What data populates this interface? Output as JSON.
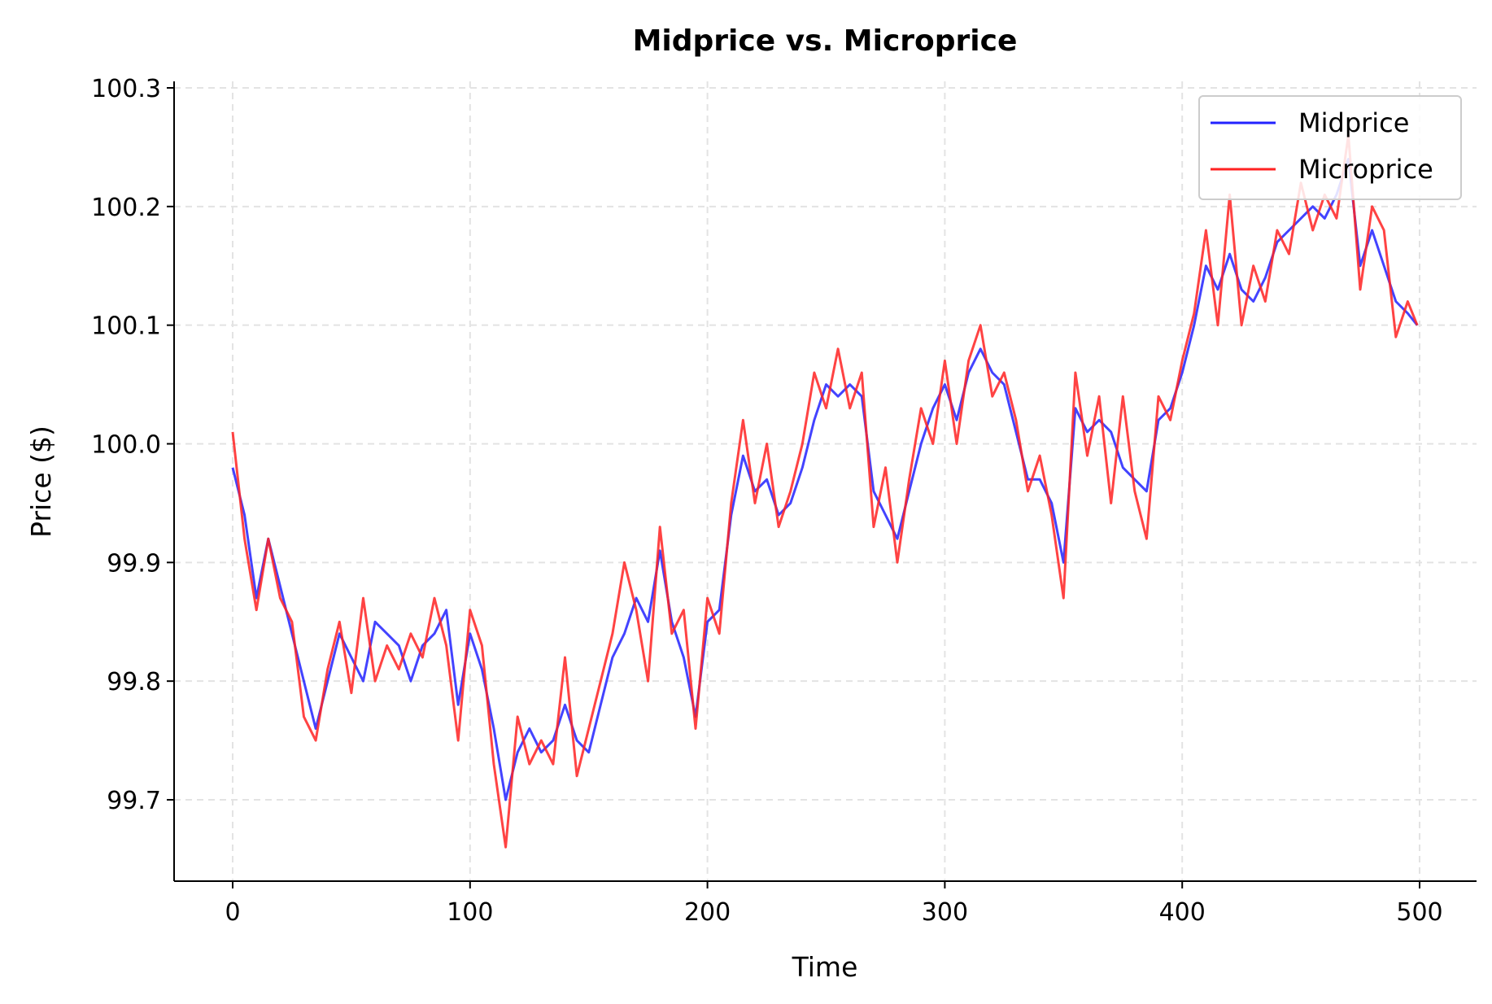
{
  "chart_data": {
    "type": "line",
    "title": "Midprice vs. Microprice",
    "xlabel": "Time",
    "ylabel": "Price ($)",
    "xlim": [
      -25,
      525
    ],
    "ylim": [
      99.63,
      100.31
    ],
    "xticks": [
      0,
      100,
      200,
      300,
      400,
      500
    ],
    "yticks": [
      99.7,
      99.8,
      99.9,
      100.0,
      100.1,
      100.2,
      100.3
    ],
    "xtick_labels": [
      "0",
      "100",
      "200",
      "300",
      "400",
      "500"
    ],
    "ytick_labels": [
      "99.7",
      "99.8",
      "99.9",
      "100.0",
      "100.1",
      "100.2",
      "100.3"
    ],
    "grid": true,
    "legend_position": "upper-right",
    "x": [
      0,
      5,
      10,
      15,
      20,
      25,
      30,
      35,
      40,
      45,
      50,
      55,
      60,
      65,
      70,
      75,
      80,
      85,
      90,
      95,
      100,
      105,
      110,
      115,
      120,
      125,
      130,
      135,
      140,
      145,
      150,
      155,
      160,
      165,
      170,
      175,
      180,
      185,
      190,
      195,
      200,
      205,
      210,
      215,
      220,
      225,
      230,
      235,
      240,
      245,
      250,
      255,
      260,
      265,
      270,
      275,
      280,
      285,
      290,
      295,
      300,
      305,
      310,
      315,
      320,
      325,
      330,
      335,
      340,
      345,
      350,
      355,
      360,
      365,
      370,
      375,
      380,
      385,
      390,
      395,
      400,
      405,
      410,
      415,
      420,
      425,
      430,
      435,
      440,
      445,
      450,
      455,
      460,
      465,
      470,
      475,
      480,
      485,
      490,
      495,
      499
    ],
    "series": [
      {
        "name": "Midprice",
        "color": "#2222ff",
        "values": [
          99.98,
          99.94,
          99.87,
          99.92,
          99.88,
          99.84,
          99.8,
          99.76,
          99.8,
          99.84,
          99.82,
          99.8,
          99.85,
          99.84,
          99.83,
          99.8,
          99.83,
          99.84,
          99.86,
          99.78,
          99.84,
          99.81,
          99.76,
          99.7,
          99.74,
          99.76,
          99.74,
          99.75,
          99.78,
          99.75,
          99.74,
          99.78,
          99.82,
          99.84,
          99.87,
          99.85,
          99.91,
          99.85,
          99.82,
          99.77,
          99.85,
          99.86,
          99.94,
          99.99,
          99.96,
          99.97,
          99.94,
          99.95,
          99.98,
          100.02,
          100.05,
          100.04,
          100.05,
          100.04,
          99.96,
          99.94,
          99.92,
          99.96,
          100.0,
          100.03,
          100.05,
          100.02,
          100.06,
          100.08,
          100.06,
          100.05,
          100.01,
          99.97,
          99.97,
          99.95,
          99.9,
          100.03,
          100.01,
          100.02,
          100.01,
          99.98,
          99.97,
          99.96,
          100.02,
          100.03,
          100.06,
          100.1,
          100.15,
          100.13,
          100.16,
          100.13,
          100.12,
          100.14,
          100.17,
          100.18,
          100.19,
          100.2,
          100.19,
          100.21,
          100.24,
          100.15,
          100.18,
          100.15,
          100.12,
          100.11,
          100.1
        ]
      },
      {
        "name": "Microprice",
        "color": "#ff2222",
        "values": [
          100.01,
          99.92,
          99.86,
          99.92,
          99.87,
          99.85,
          99.77,
          99.75,
          99.81,
          99.85,
          99.79,
          99.87,
          99.8,
          99.83,
          99.81,
          99.84,
          99.82,
          99.87,
          99.83,
          99.75,
          99.86,
          99.83,
          99.73,
          99.66,
          99.77,
          99.73,
          99.75,
          99.73,
          99.82,
          99.72,
          99.76,
          99.8,
          99.84,
          99.9,
          99.86,
          99.8,
          99.93,
          99.84,
          99.86,
          99.76,
          99.87,
          99.84,
          99.95,
          100.02,
          99.95,
          100.0,
          99.93,
          99.96,
          100.0,
          100.06,
          100.03,
          100.08,
          100.03,
          100.06,
          99.93,
          99.98,
          99.9,
          99.97,
          100.03,
          100.0,
          100.07,
          100.0,
          100.07,
          100.1,
          100.04,
          100.06,
          100.02,
          99.96,
          99.99,
          99.94,
          99.87,
          100.06,
          99.99,
          100.04,
          99.95,
          100.04,
          99.96,
          99.92,
          100.04,
          100.02,
          100.07,
          100.11,
          100.18,
          100.1,
          100.21,
          100.1,
          100.15,
          100.12,
          100.18,
          100.16,
          100.22,
          100.18,
          100.21,
          100.19,
          100.26,
          100.13,
          100.2,
          100.18,
          100.09,
          100.12,
          100.1
        ]
      }
    ]
  }
}
